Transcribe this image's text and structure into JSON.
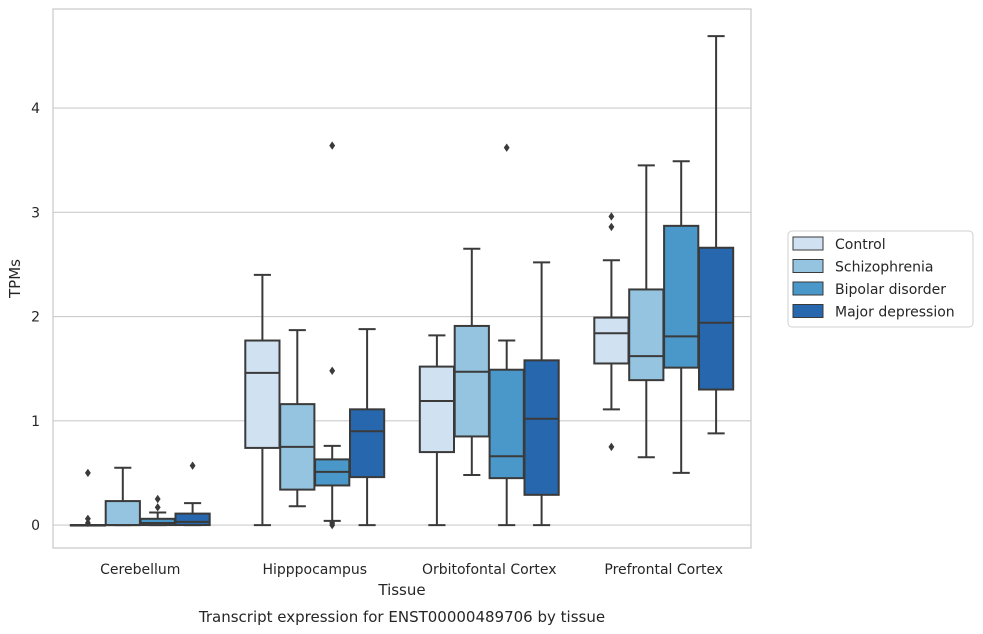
{
  "chart_data": {
    "type": "box",
    "title": "",
    "caption": "Transcript expression for ENST00000489706 by tissue",
    "xlabel": "Tissue",
    "ylabel": "TPMs",
    "ylim": [
      -0.22,
      4.95
    ],
    "yticks": [
      0,
      1,
      2,
      3,
      4
    ],
    "grid": "y",
    "legend_position": "right",
    "categories": [
      "Cerebellum",
      "Hipppocampus",
      "Orbitofontal Cortex",
      "Prefrontal Cortex"
    ],
    "series": [
      {
        "name": "Control",
        "color": "#d0e1f2",
        "boxes": [
          {
            "whislo": 0.0,
            "q1": 0.0,
            "med": 0.0,
            "q3": 0.0,
            "whishi": 0.0,
            "fliers": [
              0.5,
              0.06,
              0.02
            ]
          },
          {
            "whislo": 0.0,
            "q1": 0.74,
            "med": 1.46,
            "q3": 1.77,
            "whishi": 2.4,
            "fliers": []
          },
          {
            "whislo": 0.0,
            "q1": 0.7,
            "med": 1.19,
            "q3": 1.52,
            "whishi": 1.82,
            "fliers": []
          },
          {
            "whislo": 1.11,
            "q1": 1.55,
            "med": 1.84,
            "q3": 1.99,
            "whishi": 2.54,
            "fliers": [
              2.96,
              2.86,
              0.75
            ]
          }
        ]
      },
      {
        "name": "Schizophrenia",
        "color": "#94c4df",
        "boxes": [
          {
            "whislo": 0.0,
            "q1": 0.0,
            "med": 0.0,
            "q3": 0.23,
            "whishi": 0.55,
            "fliers": []
          },
          {
            "whislo": 0.18,
            "q1": 0.34,
            "med": 0.75,
            "q3": 1.16,
            "whishi": 1.87,
            "fliers": []
          },
          {
            "whislo": 0.48,
            "q1": 0.85,
            "med": 1.47,
            "q3": 1.91,
            "whishi": 2.65,
            "fliers": []
          },
          {
            "whislo": 0.65,
            "q1": 1.39,
            "med": 1.62,
            "q3": 2.26,
            "whishi": 3.45,
            "fliers": []
          }
        ]
      },
      {
        "name": "Bipolar disorder",
        "color": "#4a98c9",
        "boxes": [
          {
            "whislo": 0.0,
            "q1": 0.0,
            "med": 0.02,
            "q3": 0.06,
            "whishi": 0.12,
            "fliers": [
              0.25,
              0.17
            ]
          },
          {
            "whislo": 0.04,
            "q1": 0.38,
            "med": 0.51,
            "q3": 0.63,
            "whishi": 0.76,
            "fliers": [
              3.64,
              1.48,
              0.02,
              0.0
            ]
          },
          {
            "whislo": 0.0,
            "q1": 0.45,
            "med": 0.66,
            "q3": 1.49,
            "whishi": 1.77,
            "fliers": [
              3.62
            ]
          },
          {
            "whislo": 0.5,
            "q1": 1.51,
            "med": 1.81,
            "q3": 2.87,
            "whishi": 3.49,
            "fliers": []
          }
        ]
      },
      {
        "name": "Major depression",
        "color": "#2767ad",
        "boxes": [
          {
            "whislo": 0.0,
            "q1": 0.0,
            "med": 0.03,
            "q3": 0.11,
            "whishi": 0.21,
            "fliers": [
              0.57
            ]
          },
          {
            "whislo": 0.0,
            "q1": 0.46,
            "med": 0.9,
            "q3": 1.11,
            "whishi": 1.88,
            "fliers": []
          },
          {
            "whislo": 0.0,
            "q1": 0.29,
            "med": 1.02,
            "q3": 1.58,
            "whishi": 2.52,
            "fliers": []
          },
          {
            "whislo": 0.88,
            "q1": 1.3,
            "med": 1.94,
            "q3": 2.66,
            "whishi": 4.69,
            "fliers": []
          }
        ]
      }
    ]
  }
}
